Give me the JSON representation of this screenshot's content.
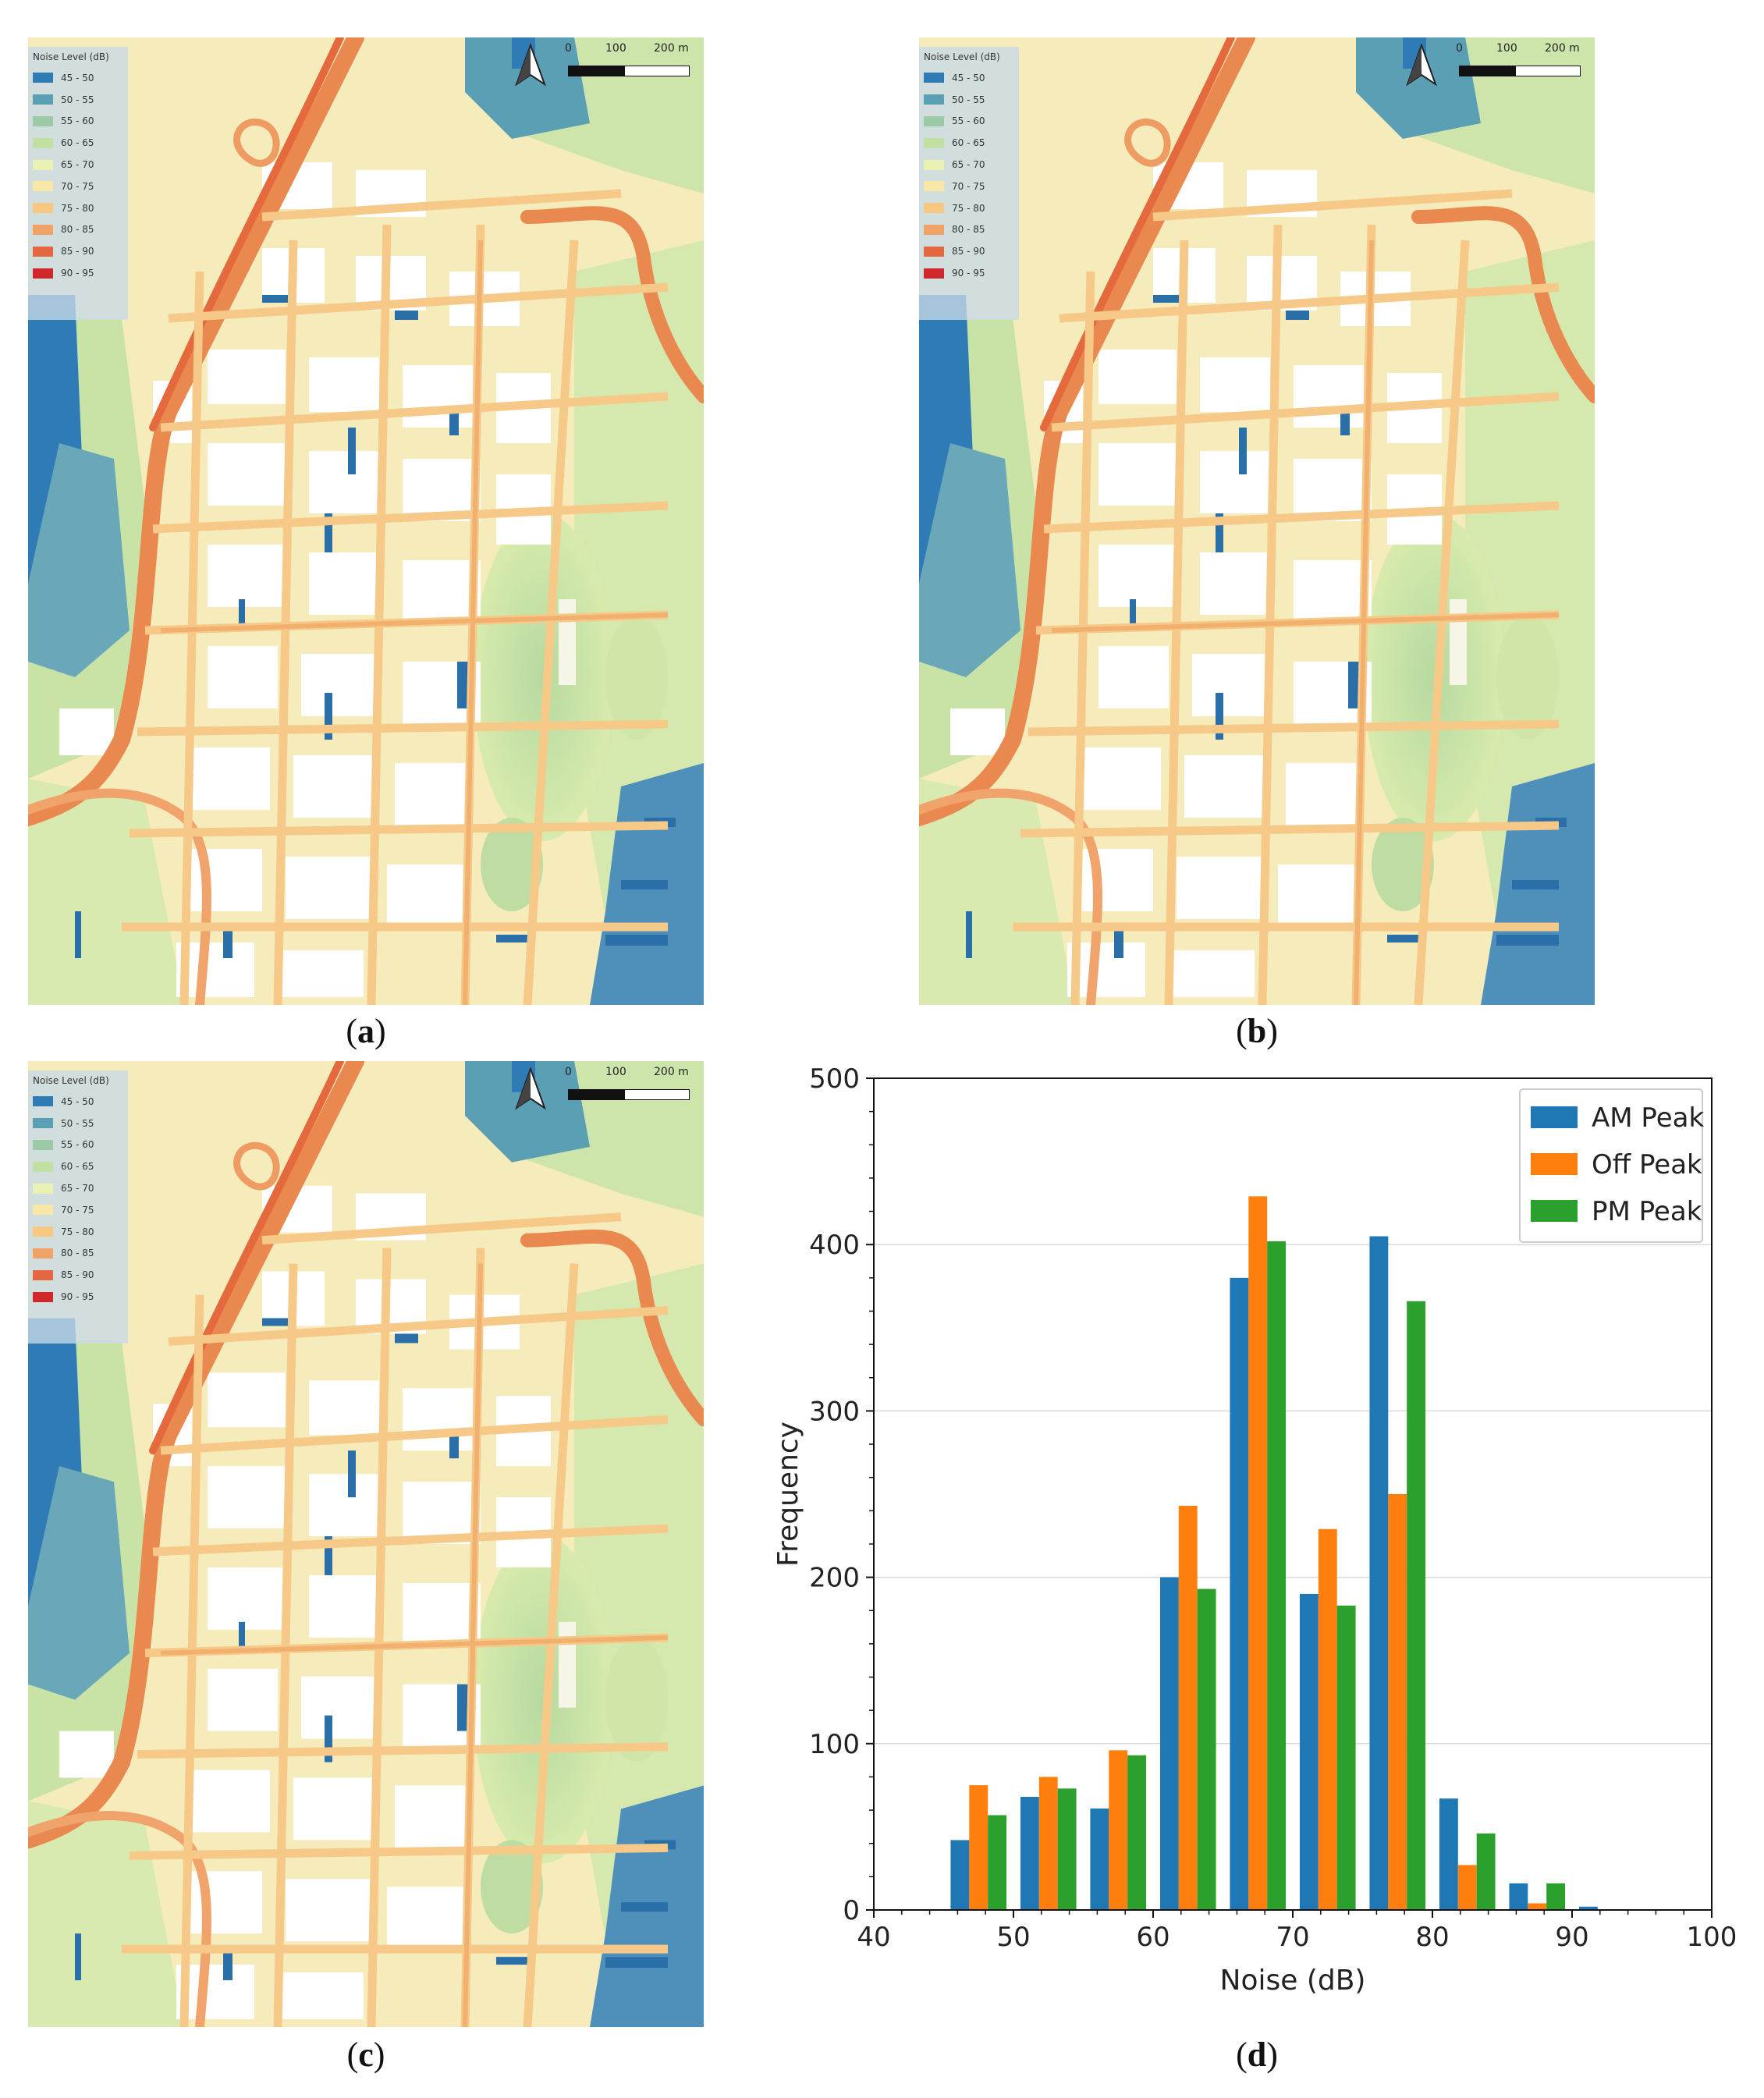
{
  "maps": [
    {
      "id": "a",
      "caption_letter": "a"
    },
    {
      "id": "b",
      "caption_letter": "b"
    },
    {
      "id": "c",
      "caption_letter": "c"
    }
  ],
  "legend": {
    "title": "Noise Level (dB)",
    "items": [
      {
        "label": "45 - 50",
        "color": "#2f7bb6"
      },
      {
        "label": "50 - 55",
        "color": "#5b9fb5"
      },
      {
        "label": "55 - 60",
        "color": "#9ccaa6"
      },
      {
        "label": "60 - 65",
        "color": "#c3e0a4"
      },
      {
        "label": "65 - 70",
        "color": "#e9f1b4"
      },
      {
        "label": "70 - 75",
        "color": "#f8e7a6"
      },
      {
        "label": "75 - 80",
        "color": "#f7c882"
      },
      {
        "label": "80 - 85",
        "color": "#f1a266"
      },
      {
        "label": "85 - 90",
        "color": "#e4683f"
      },
      {
        "label": "90 - 95",
        "color": "#d0282a"
      }
    ]
  },
  "scale": {
    "label_0": "0",
    "label_100": "100",
    "label_200": "200 m"
  },
  "north_icon": "north-arrow-icon",
  "chart_caption_letter": "d",
  "chart_data": {
    "type": "bar",
    "xlabel": "Noise (dB)",
    "ylabel": "Frequency",
    "xlim": [
      40,
      100
    ],
    "ylim": [
      0,
      500
    ],
    "xticks": [
      40,
      50,
      60,
      70,
      80,
      90,
      100
    ],
    "yticks": [
      0,
      100,
      200,
      300,
      400,
      500
    ],
    "grid": "horizontal",
    "legend_position": "top-right",
    "bin_centers": [
      47.5,
      52.5,
      57.5,
      62.5,
      67.5,
      72.5,
      77.5,
      82.5,
      87.5,
      92.5
    ],
    "series": [
      {
        "name": "AM Peak",
        "color": "#1f77b4",
        "values": [
          42,
          68,
          61,
          200,
          380,
          190,
          405,
          67,
          16,
          2
        ]
      },
      {
        "name": "Off Peak",
        "color": "#ff7f0e",
        "values": [
          75,
          80,
          96,
          243,
          429,
          229,
          250,
          27,
          4,
          0
        ]
      },
      {
        "name": "PM Peak",
        "color": "#2ca02c",
        "values": [
          57,
          73,
          93,
          193,
          402,
          183,
          366,
          46,
          16,
          0
        ]
      }
    ]
  }
}
